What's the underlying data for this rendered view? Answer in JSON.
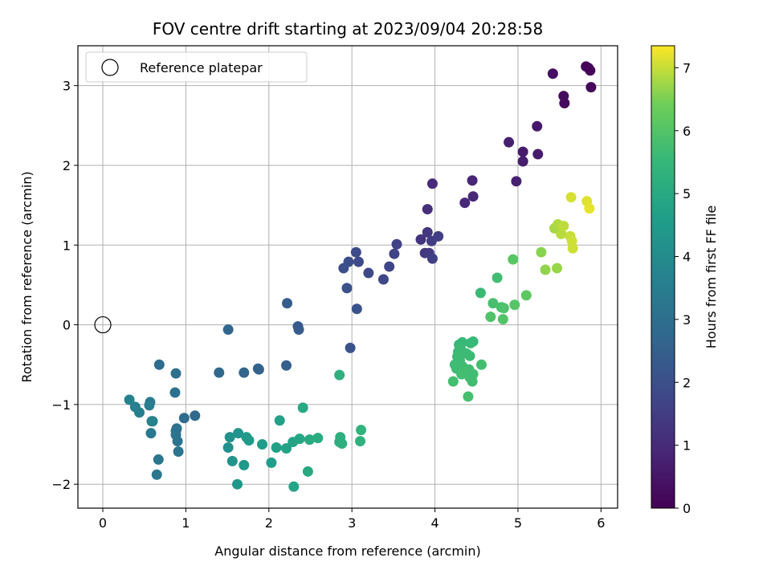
{
  "chart_data": {
    "type": "scatter",
    "title": "FOV centre drift starting at 2023/09/04 20:28:58",
    "xlabel": "Angular distance from reference (arcmin)",
    "ylabel": "Rotation from reference (arcmin)",
    "xlim": [
      -0.3,
      6.2
    ],
    "ylim": [
      -2.3,
      3.5
    ],
    "xticks": [
      0,
      1,
      2,
      3,
      4,
      5,
      6
    ],
    "yticks": [
      -2,
      -1,
      0,
      1,
      2,
      3
    ],
    "grid": true,
    "legend": {
      "placement": "top-left",
      "entries": [
        "Reference platepar"
      ]
    },
    "reference_point": {
      "x": 0,
      "y": 0,
      "label": "Reference platepar"
    },
    "colorbar": {
      "label": "Hours from first FF file",
      "colormap": "viridis",
      "min": 0,
      "max": 7.35,
      "ticks": [
        0,
        1,
        2,
        3,
        4,
        5,
        6,
        7
      ]
    },
    "points": [
      [
        5.82,
        3.24,
        0.05
      ],
      [
        5.85,
        3.22,
        0.08
      ],
      [
        5.87,
        3.19,
        0.12
      ],
      [
        5.88,
        2.98,
        0.15
      ],
      [
        5.55,
        2.87,
        0.22
      ],
      [
        5.56,
        2.78,
        0.25
      ],
      [
        5.42,
        3.15,
        0.3
      ],
      [
        5.23,
        2.49,
        0.55
      ],
      [
        5.24,
        2.14,
        0.6
      ],
      [
        5.06,
        2.17,
        0.62
      ],
      [
        5.06,
        2.05,
        0.65
      ],
      [
        4.89,
        2.29,
        0.7
      ],
      [
        4.98,
        1.8,
        0.75
      ],
      [
        4.45,
        1.81,
        0.85
      ],
      [
        4.46,
        1.61,
        0.9
      ],
      [
        4.36,
        1.53,
        0.95
      ],
      [
        3.97,
        1.77,
        1.0
      ],
      [
        3.91,
        1.45,
        1.1
      ],
      [
        3.83,
        1.07,
        1.25
      ],
      [
        3.91,
        1.16,
        1.3
      ],
      [
        3.88,
        0.9,
        1.35
      ],
      [
        3.93,
        0.9,
        1.4
      ],
      [
        3.96,
        1.05,
        1.45
      ],
      [
        4.04,
        1.11,
        1.5
      ],
      [
        3.97,
        0.83,
        1.55
      ],
      [
        3.54,
        1.01,
        1.6
      ],
      [
        3.51,
        0.89,
        1.65
      ],
      [
        3.45,
        0.73,
        1.7
      ],
      [
        3.38,
        0.57,
        1.75
      ],
      [
        3.2,
        0.65,
        1.8
      ],
      [
        3.08,
        0.79,
        1.85
      ],
      [
        3.05,
        0.91,
        1.9
      ],
      [
        2.96,
        0.79,
        1.95
      ],
      [
        2.9,
        0.71,
        2.0
      ],
      [
        2.94,
        0.46,
        2.05
      ],
      [
        3.06,
        0.2,
        2.1
      ],
      [
        2.98,
        -0.29,
        2.15
      ],
      [
        2.35,
        -0.02,
        2.3
      ],
      [
        2.36,
        -0.06,
        2.35
      ],
      [
        2.22,
        0.27,
        2.4
      ],
      [
        2.21,
        -0.51,
        2.5
      ],
      [
        1.88,
        -0.56,
        2.55
      ],
      [
        1.87,
        -0.55,
        2.6
      ],
      [
        1.7,
        -0.6,
        2.65
      ],
      [
        1.51,
        -0.06,
        2.7
      ],
      [
        1.4,
        -0.6,
        2.75
      ],
      [
        1.11,
        -1.14,
        2.85
      ],
      [
        0.98,
        -1.17,
        2.9
      ],
      [
        0.68,
        -0.5,
        2.95
      ],
      [
        0.88,
        -0.61,
        3.0
      ],
      [
        0.87,
        -0.85,
        3.05
      ],
      [
        0.88,
        -1.33,
        3.1
      ],
      [
        0.89,
        -1.3,
        3.12
      ],
      [
        0.88,
        -1.38,
        3.15
      ],
      [
        0.9,
        -1.46,
        3.18
      ],
      [
        0.91,
        -1.59,
        3.2
      ],
      [
        0.67,
        -1.69,
        3.25
      ],
      [
        0.65,
        -1.88,
        3.3
      ],
      [
        0.59,
        -1.21,
        3.35
      ],
      [
        0.58,
        -1.36,
        3.4
      ],
      [
        0.57,
        -0.97,
        3.45
      ],
      [
        0.56,
        -1.01,
        3.5
      ],
      [
        0.44,
        -1.1,
        3.55
      ],
      [
        0.39,
        -1.03,
        3.6
      ],
      [
        0.32,
        -0.94,
        3.65
      ],
      [
        0.6,
        -1.21,
        3.7
      ],
      [
        1.51,
        -1.54,
        4.15
      ],
      [
        1.53,
        -1.41,
        4.2
      ],
      [
        1.56,
        -1.71,
        4.25
      ],
      [
        1.63,
        -1.36,
        4.3
      ],
      [
        1.62,
        -2.0,
        4.35
      ],
      [
        1.7,
        -1.76,
        4.4
      ],
      [
        1.73,
        -1.41,
        4.45
      ],
      [
        1.76,
        -1.45,
        4.5
      ],
      [
        1.92,
        -1.5,
        4.55
      ],
      [
        2.03,
        -1.73,
        4.6
      ],
      [
        2.09,
        -1.54,
        4.65
      ],
      [
        2.13,
        -1.2,
        4.7
      ],
      [
        2.21,
        -1.55,
        4.75
      ],
      [
        2.29,
        -1.47,
        4.8
      ],
      [
        2.3,
        -2.03,
        4.85
      ],
      [
        2.37,
        -1.43,
        4.9
      ],
      [
        2.41,
        -1.04,
        4.95
      ],
      [
        2.47,
        -1.84,
        5.0
      ],
      [
        2.49,
        -1.44,
        5.05
      ],
      [
        2.59,
        -1.42,
        5.1
      ],
      [
        2.85,
        -1.47,
        5.15
      ],
      [
        2.86,
        -1.41,
        5.18
      ],
      [
        2.88,
        -1.49,
        5.2
      ],
      [
        2.85,
        -0.63,
        5.25
      ],
      [
        3.1,
        -1.46,
        5.3
      ],
      [
        3.11,
        -1.32,
        5.35
      ],
      [
        4.55,
        0.4,
        5.6
      ],
      [
        4.75,
        0.59,
        5.7
      ],
      [
        4.7,
        0.27,
        5.8
      ],
      [
        4.8,
        0.22,
        5.85
      ],
      [
        4.83,
        0.21,
        5.9
      ],
      [
        4.67,
        0.1,
        5.95
      ],
      [
        4.82,
        0.07,
        6.0
      ],
      [
        4.96,
        0.25,
        6.05
      ],
      [
        4.94,
        0.82,
        6.1
      ],
      [
        5.1,
        0.37,
        6.15
      ],
      [
        4.29,
        -0.25,
        5.55
      ],
      [
        4.33,
        -0.22,
        5.56
      ],
      [
        4.43,
        -0.23,
        5.57
      ],
      [
        4.46,
        -0.21,
        5.58
      ],
      [
        4.28,
        -0.34,
        5.6
      ],
      [
        4.31,
        -0.3,
        5.61
      ],
      [
        4.38,
        -0.36,
        5.62
      ],
      [
        4.42,
        -0.39,
        5.63
      ],
      [
        4.27,
        -0.4,
        5.64
      ],
      [
        4.3,
        -0.45,
        5.65
      ],
      [
        4.24,
        -0.5,
        5.66
      ],
      [
        4.26,
        -0.55,
        5.67
      ],
      [
        4.33,
        -0.52,
        5.68
      ],
      [
        4.36,
        -0.58,
        5.69
      ],
      [
        4.41,
        -0.56,
        5.7
      ],
      [
        4.46,
        -0.62,
        5.71
      ],
      [
        4.42,
        -0.66,
        5.72
      ],
      [
        4.45,
        -0.71,
        5.73
      ],
      [
        4.32,
        -0.62,
        5.74
      ],
      [
        4.35,
        -0.6,
        5.75
      ],
      [
        4.22,
        -0.71,
        5.76
      ],
      [
        4.56,
        -0.5,
        5.77
      ],
      [
        4.4,
        -0.9,
        5.78
      ],
      [
        5.28,
        0.91,
        6.6
      ],
      [
        5.33,
        0.69,
        6.65
      ],
      [
        5.47,
        0.71,
        6.7
      ],
      [
        5.44,
        1.21,
        6.8
      ],
      [
        5.48,
        1.26,
        6.85
      ],
      [
        5.52,
        1.14,
        6.9
      ],
      [
        5.55,
        1.24,
        6.95
      ],
      [
        5.63,
        1.11,
        7.0
      ],
      [
        5.65,
        1.05,
        7.05
      ],
      [
        5.66,
        0.96,
        7.05
      ],
      [
        5.64,
        1.6,
        7.1
      ],
      [
        5.83,
        1.55,
        7.15
      ],
      [
        5.86,
        1.46,
        7.2
      ]
    ]
  }
}
